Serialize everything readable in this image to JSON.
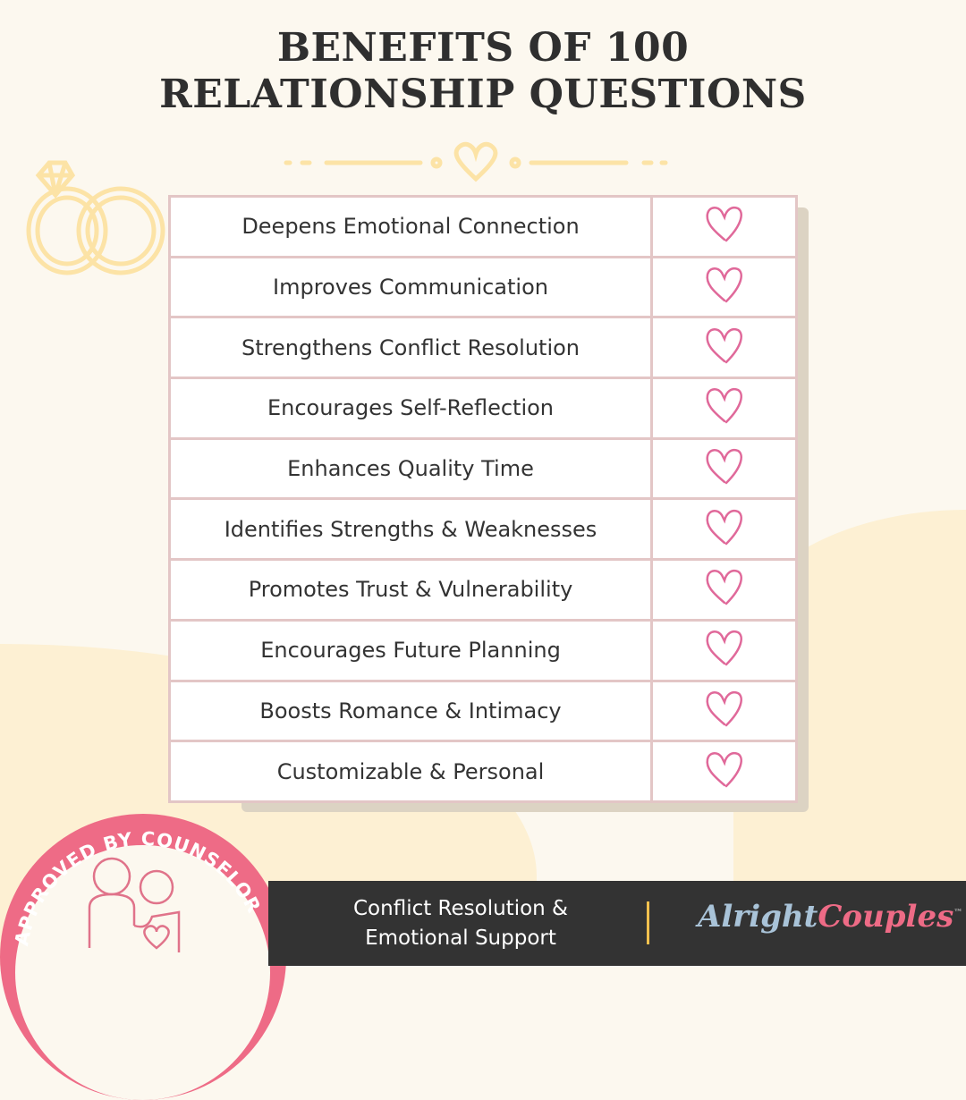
{
  "title": {
    "line1": "BENEFITS OF 100",
    "line2": "RELATIONSHIP QUESTIONS"
  },
  "benefits": [
    {
      "label": "Deepens Emotional Connection",
      "icon": "heart-icon"
    },
    {
      "label": "Improves Communication",
      "icon": "heart-icon"
    },
    {
      "label": "Strengthens Conflict Resolution",
      "icon": "heart-icon"
    },
    {
      "label": "Encourages Self-Reflection",
      "icon": "heart-icon"
    },
    {
      "label": "Enhances Quality Time",
      "icon": "heart-icon"
    },
    {
      "label": "Identifies Strengths & Weaknesses",
      "icon": "heart-icon"
    },
    {
      "label": "Promotes Trust & Vulnerability",
      "icon": "heart-icon"
    },
    {
      "label": "Encourages Future Planning",
      "icon": "heart-icon"
    },
    {
      "label": "Boosts Romance & Intimacy",
      "icon": "heart-icon"
    },
    {
      "label": "Customizable & Personal",
      "icon": "heart-icon"
    }
  ],
  "badge": {
    "text": "APPROVED BY COUNSELOR"
  },
  "footer": {
    "line1": "Conflict Resolution &",
    "line2": "Emotional Support",
    "logo_part1": "Alright",
    "logo_part2": "Couples",
    "logo_tm": "™"
  },
  "colors": {
    "heart": "#e0699a",
    "accent_pink": "#ee6b86",
    "gold": "#fce3a6",
    "footer_bg": "#333333",
    "logo_blue": "#a9c3d8"
  }
}
